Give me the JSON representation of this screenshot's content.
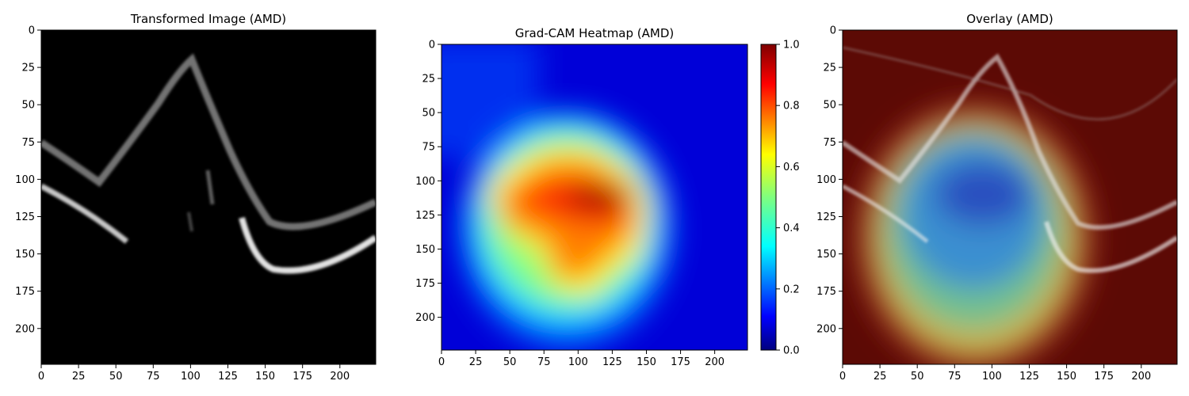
{
  "chart_data": [
    {
      "type": "heatmap",
      "title": "Transformed Image (AMD)",
      "x_ticks": [
        0,
        25,
        50,
        75,
        100,
        125,
        150,
        175,
        200
      ],
      "y_ticks": [
        0,
        25,
        50,
        75,
        100,
        125,
        150,
        175,
        200
      ],
      "xlim": [
        0,
        224
      ],
      "ylim": [
        224,
        0
      ],
      "colormap": "gray",
      "colorbar": false
    },
    {
      "type": "heatmap",
      "title": "Grad-CAM Heatmap (AMD)",
      "x_ticks": [
        0,
        25,
        50,
        75,
        100,
        125,
        150,
        175,
        200
      ],
      "y_ticks": [
        0,
        25,
        50,
        75,
        100,
        125,
        150,
        175,
        200
      ],
      "xlim": [
        0,
        224
      ],
      "ylim": [
        224,
        0
      ],
      "colormap": "jet",
      "colorbar": true,
      "colorbar_ticks": [
        "0.0",
        "0.2",
        "0.4",
        "0.6",
        "0.8",
        "1.0"
      ],
      "colorbar_range": [
        0,
        1
      ]
    },
    {
      "type": "heatmap",
      "title": "Overlay (AMD)",
      "x_ticks": [
        0,
        25,
        50,
        75,
        100,
        125,
        150,
        175,
        200
      ],
      "y_ticks": [
        0,
        25,
        50,
        75,
        100,
        125,
        150,
        175,
        200
      ],
      "xlim": [
        0,
        224
      ],
      "ylim": [
        224,
        0
      ],
      "colormap": "jet",
      "colorbar": false
    }
  ],
  "colors": {
    "jet": [
      "#00007f",
      "#0000ff",
      "#007fff",
      "#00ffff",
      "#7fff7f",
      "#ffff00",
      "#ff7f00",
      "#ff0000",
      "#7f0000"
    ]
  }
}
